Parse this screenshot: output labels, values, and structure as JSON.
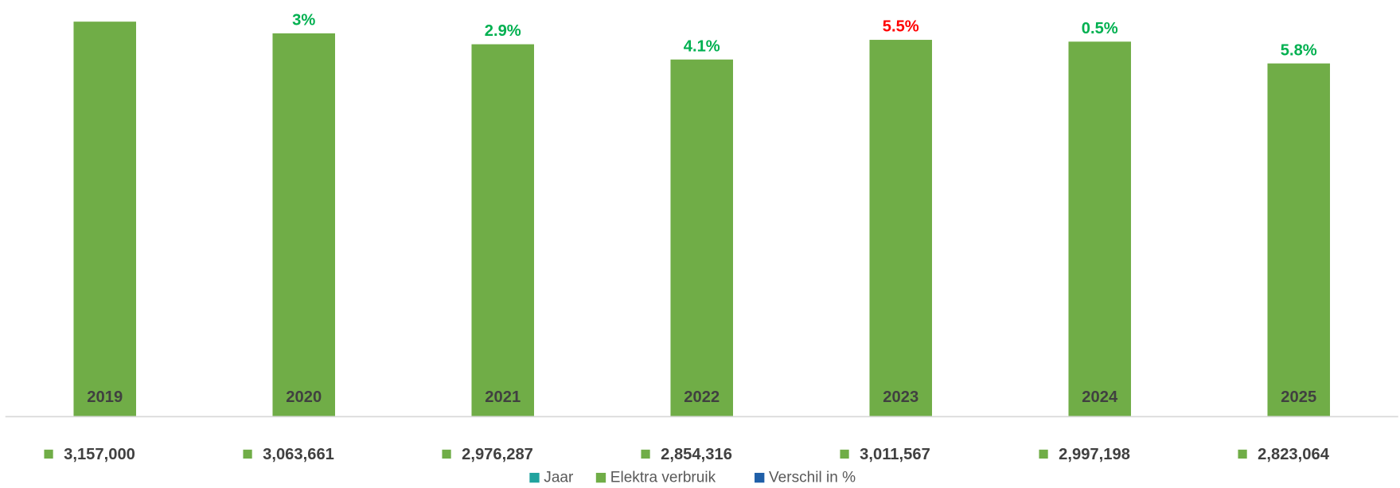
{
  "chart_data": {
    "type": "bar",
    "categories": [
      "2019",
      "2020",
      "2021",
      "2022",
      "2023",
      "2024",
      "2025"
    ],
    "ylim": [
      0,
      3330000
    ],
    "series": [
      {
        "name": "Jaar",
        "color": "#20a39e"
      },
      {
        "name": "Elektra verbruik",
        "color": "#70ad47",
        "values": [
          3157000,
          3063661,
          2976287,
          2854316,
          3011567,
          2997198,
          2823064
        ],
        "value_labels": [
          "3,157,000",
          "3,063,661",
          "2,976,287",
          "2,854,316",
          "3,011,567",
          "2,997,198",
          "2,823,064"
        ]
      },
      {
        "name": "Verschil in %",
        "color": "#1f5fa8",
        "values": [
          null,
          3,
          2.9,
          4.1,
          5.5,
          0.5,
          5.8
        ],
        "value_labels": [
          null,
          "3%",
          "2.9%",
          "4.1%",
          "5.5%",
          "0.5%",
          "5.8%"
        ],
        "label_colors": [
          null,
          "#00b050",
          "#00b050",
          "#00b050",
          "#ff0000",
          "#00b050",
          "#00b050"
        ]
      }
    ],
    "category_label_color": "#404040",
    "axis_color": "#d9d9d9"
  }
}
